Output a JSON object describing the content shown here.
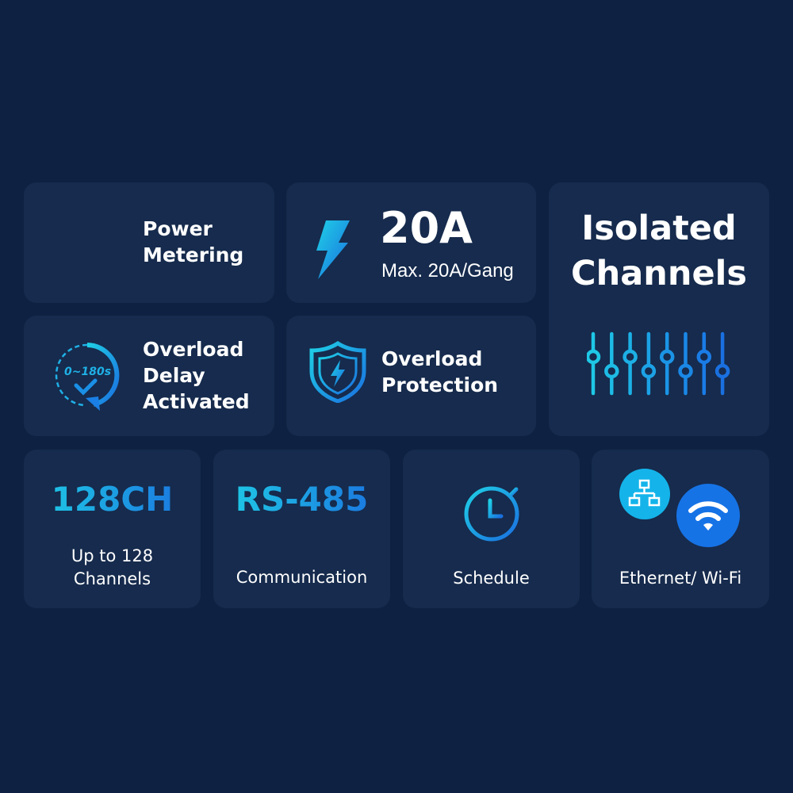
{
  "colors": {
    "background": "#0e2142",
    "card": "#162b4d",
    "accent_cyan": "#1fd0e6",
    "accent_blue": "#1a6fe0"
  },
  "power_metering": {
    "icon": "bar-chart-icon",
    "line1": "Power",
    "line2": "Metering"
  },
  "current": {
    "icon": "lightning-icon",
    "value": "20A",
    "caption": "Max. 20A/Gang"
  },
  "isolated": {
    "line1": "Isolated",
    "line2": "Channels",
    "icon": "sliders-icon"
  },
  "overload_delay": {
    "icon": "timer-check-icon",
    "badge": "0~180s",
    "line1": "Overload",
    "line2": "Delay",
    "line3": "Activated"
  },
  "overload_protection": {
    "icon": "shield-lightning-icon",
    "line1": "Overload",
    "line2": "Protection"
  },
  "channels": {
    "value": "128CH",
    "line1": "Up to 128",
    "line2": "Channels"
  },
  "rs485": {
    "value": "RS-485",
    "caption": "Communication"
  },
  "schedule": {
    "icon": "stopwatch-icon",
    "caption": "Schedule"
  },
  "network": {
    "icons": [
      "ethernet-icon",
      "wifi-icon"
    ],
    "caption": "Ethernet/ Wi-Fi"
  }
}
